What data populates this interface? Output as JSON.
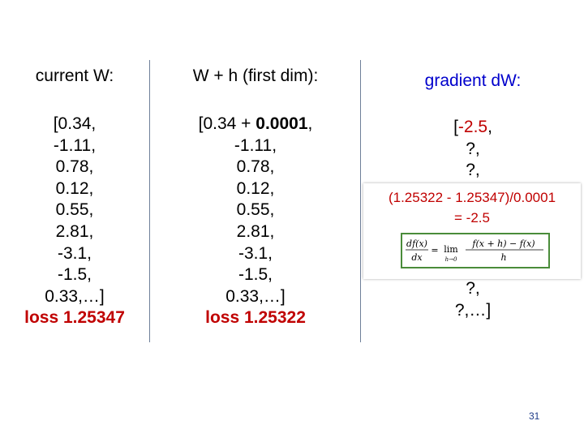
{
  "headers": {
    "current_w": "current W:",
    "w_plus_h": "W + h (first dim):",
    "gradient": "gradient dW:"
  },
  "current_w": {
    "values": [
      "[0.34,",
      "-1.11,",
      "0.78,",
      "0.12,",
      "0.55,",
      "2.81,",
      "-3.1,",
      "-1.5,",
      "0.33,…]"
    ],
    "loss": "loss 1.25347"
  },
  "w_plus_h": {
    "first_prefix": "[0.34 + ",
    "first_highlight": "0.0001",
    "first_suffix": ",",
    "values": [
      "-1.11,",
      "0.78,",
      "0.12,",
      "0.55,",
      "2.81,",
      "-3.1,",
      "-1.5,",
      "0.33,…]"
    ],
    "loss": "loss 1.25322"
  },
  "gradient": {
    "first_prefix": "[",
    "first_highlight": "-2.5",
    "first_suffix": ",",
    "values_top": [
      "?,",
      "?,"
    ],
    "values_bottom": [
      "?,",
      "?,…]"
    ]
  },
  "calculation": {
    "line1": "(1.25322 - 1.25347)/0.0001",
    "line2": "= -2.5"
  },
  "formula": {
    "lhs_num": "df(x)",
    "lhs_den": "dx",
    "eq": "=",
    "lim": "lim",
    "lim_sub": "h→0",
    "rhs_num": "f(x + h) − f(x)",
    "rhs_den": "h"
  },
  "colors": {
    "loss": "#c00000",
    "highlight": "#c00000",
    "gradient_header": "#0000cc",
    "divider": "#6e7f99",
    "formula_border": "#4a8c3a"
  },
  "page_number": "31"
}
